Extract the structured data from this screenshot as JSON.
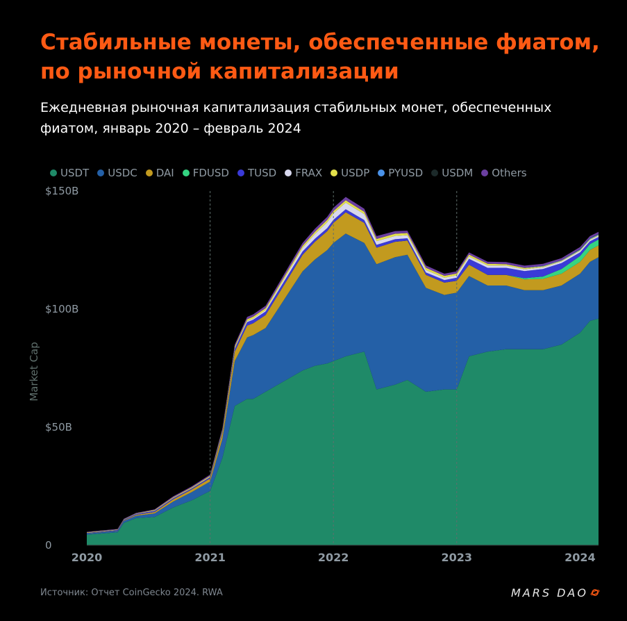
{
  "header": {
    "title": "Стабильные монеты, обеспеченные фиатом, по рыночной капитализации",
    "subtitle": "Ежедневная рыночная капитализация стабильных монет, обеспеченных фиатом, январь 2020 – февраль 2024"
  },
  "footer": {
    "source": "Источник: Отчет CoinGecko 2024. RWA",
    "brand": "MARS DAO"
  },
  "chart_data": {
    "type": "area",
    "stacked": true,
    "title": "Стабильные монеты, обеспеченные фиатом, по рыночной капитализации",
    "ylabel": "Market Cap",
    "xlabel": "",
    "ylim": [
      0,
      150
    ],
    "yticks": [
      0,
      50,
      100,
      150
    ],
    "ytick_labels": [
      "0",
      "$50B",
      "$100B",
      "$150B"
    ],
    "xticks": [
      2020,
      2021,
      2022,
      2023,
      2024
    ],
    "xtick_labels": [
      "2020",
      "2021",
      "2022",
      "2023",
      "2024"
    ],
    "xlim": [
      2020.0,
      2024.15
    ],
    "vlines": [
      2021,
      2022,
      2023
    ],
    "legend_position": "top",
    "x": [
      2020.0,
      2020.25,
      2020.3,
      2020.4,
      2020.55,
      2020.7,
      2020.85,
      2021.0,
      2021.1,
      2021.2,
      2021.3,
      2021.35,
      2021.45,
      2021.55,
      2021.65,
      2021.75,
      2021.85,
      2021.95,
      2022.0,
      2022.1,
      2022.25,
      2022.35,
      2022.5,
      2022.6,
      2022.75,
      2022.9,
      2023.0,
      2023.1,
      2023.25,
      2023.4,
      2023.55,
      2023.7,
      2023.85,
      2024.0,
      2024.08,
      2024.15
    ],
    "series": [
      {
        "name": "USDT",
        "color": "#1f8a68",
        "values": [
          4.5,
          5.5,
          9.5,
          11.5,
          12,
          16,
          19,
          23,
          37,
          59,
          62,
          62,
          65,
          68,
          71,
          74,
          76,
          77,
          78,
          80,
          82,
          66,
          68,
          70,
          65,
          66,
          66,
          80,
          82,
          83,
          83,
          83,
          85,
          90,
          95,
          96
        ]
      },
      {
        "name": "USDC",
        "color": "#2460a7",
        "values": [
          0.5,
          0.6,
          0.8,
          1,
          1.5,
          2.5,
          3.5,
          4,
          8,
          19,
          26,
          27,
          27,
          32,
          37,
          42,
          45,
          48,
          50,
          52,
          46,
          53,
          54,
          53,
          44,
          40,
          41,
          34,
          28,
          27,
          25,
          25,
          25,
          25,
          25,
          26
        ]
      },
      {
        "name": "DAI",
        "color": "#c29a1f",
        "values": [
          0.1,
          0.1,
          0.2,
          0.4,
          0.6,
          0.9,
          1.1,
          1.3,
          2.5,
          4,
          5,
          5,
          5.5,
          6,
          6.5,
          7,
          7.5,
          8,
          8.5,
          9,
          8.5,
          7,
          6.5,
          6,
          5.5,
          5.2,
          5,
          4.8,
          4.5,
          4.5,
          4.6,
          4.8,
          5,
          5,
          5,
          5
        ]
      },
      {
        "name": "FDUSD",
        "color": "#34d482",
        "values": [
          0,
          0,
          0,
          0,
          0,
          0,
          0,
          0,
          0,
          0,
          0,
          0,
          0,
          0,
          0,
          0,
          0,
          0,
          0,
          0,
          0,
          0,
          0,
          0,
          0,
          0,
          0,
          0,
          0,
          0,
          0.5,
          1,
          2,
          2.5,
          2.5,
          2.5
        ]
      },
      {
        "name": "TUSD",
        "color": "#3a3ad8",
        "values": [
          0.2,
          0.3,
          0.3,
          0.4,
          0.5,
          0.5,
          0.5,
          0.6,
          0.8,
          1.2,
          1.5,
          1.5,
          1.5,
          1.5,
          1.5,
          1.4,
          1.3,
          1.3,
          1.3,
          1.3,
          1.2,
          1.2,
          1.1,
          1.0,
          1.0,
          1.1,
          1.3,
          2.5,
          3,
          3,
          3,
          3.2,
          2.5,
          1.5,
          1.2,
          1.0
        ]
      },
      {
        "name": "FRAX",
        "color": "#d8d8ee",
        "values": [
          0,
          0,
          0,
          0,
          0,
          0,
          0,
          0,
          0,
          0.2,
          0.4,
          0.5,
          0.6,
          0.8,
          1.1,
          1.5,
          2,
          2.5,
          2.7,
          2.8,
          2.5,
          1.6,
          1.4,
          1.3,
          1.1,
          1.0,
          1.0,
          1.0,
          1.0,
          0.9,
          0.8,
          0.7,
          0.7,
          0.7,
          0.6,
          0.6
        ]
      },
      {
        "name": "USDP",
        "color": "#e3e04a",
        "values": [
          0.2,
          0.2,
          0.2,
          0.2,
          0.3,
          0.4,
          0.4,
          0.5,
          0.6,
          0.8,
          0.8,
          0.8,
          0.8,
          0.9,
          0.9,
          0.9,
          0.9,
          1.0,
          1.0,
          1.0,
          1.0,
          0.9,
          0.9,
          0.9,
          0.9,
          0.8,
          0.8,
          0.8,
          0.7,
          0.6,
          0.5,
          0.4,
          0.3,
          0.3,
          0.3,
          0.3
        ]
      },
      {
        "name": "PYUSD",
        "color": "#4a92e8",
        "values": [
          0,
          0,
          0,
          0,
          0,
          0,
          0,
          0,
          0,
          0,
          0,
          0,
          0,
          0,
          0,
          0,
          0,
          0,
          0,
          0,
          0,
          0,
          0,
          0,
          0,
          0,
          0,
          0,
          0,
          0,
          0.1,
          0.2,
          0.2,
          0.3,
          0.3,
          0.3
        ]
      },
      {
        "name": "USDM",
        "color": "#1c2a2a",
        "values": [
          0,
          0,
          0,
          0,
          0,
          0,
          0,
          0,
          0,
          0,
          0,
          0,
          0,
          0,
          0,
          0,
          0,
          0,
          0,
          0,
          0,
          0,
          0,
          0,
          0,
          0,
          0,
          0,
          0,
          0,
          0,
          0,
          0,
          0.1,
          0.1,
          0.1
        ]
      },
      {
        "name": "Others",
        "color": "#6b3fa0",
        "values": [
          0.2,
          0.2,
          0.2,
          0.2,
          0.3,
          0.4,
          0.4,
          0.5,
          0.6,
          0.8,
          1.0,
          1.0,
          1.0,
          1.1,
          1.2,
          1.2,
          1.3,
          1.3,
          1.4,
          1.4,
          1.3,
          1.2,
          1.1,
          1.0,
          1.0,
          0.9,
          0.9,
          0.9,
          0.9,
          0.9,
          0.9,
          0.9,
          0.9,
          0.9,
          0.9,
          0.9
        ]
      }
    ]
  }
}
